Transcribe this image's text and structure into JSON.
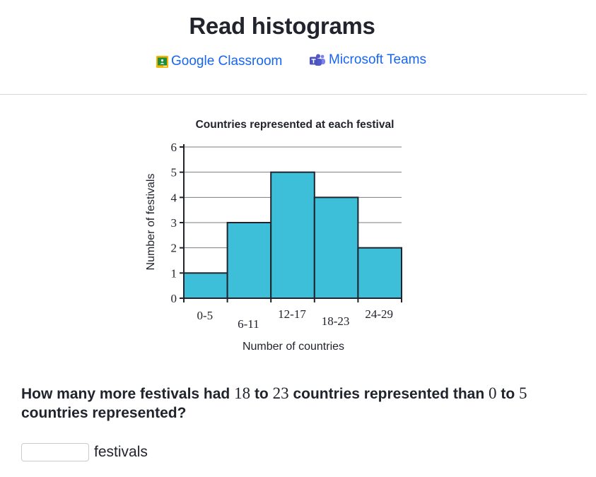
{
  "page": {
    "title": "Read histograms"
  },
  "share": {
    "google_classroom": "Google Classroom",
    "microsoft_teams": "Microsoft Teams"
  },
  "chart_data": {
    "type": "bar",
    "title": "Countries represented at each festival",
    "xlabel": "Number of countries",
    "ylabel": "Number of festivals",
    "categories": [
      "0-5",
      "6-11",
      "12-17",
      "18-23",
      "24-29"
    ],
    "values": [
      1,
      3,
      5,
      4,
      2
    ],
    "ylim": [
      0,
      6
    ],
    "yticks": [
      0,
      1,
      2,
      3,
      4,
      5,
      6
    ],
    "grid": true,
    "bar_color": "#3ebfd9",
    "bar_edge_color": "#21242c"
  },
  "question": {
    "part1": "How many more festivals had ",
    "n1": "18",
    "part2": " to ",
    "n2": "23",
    "part3": " countries represented than ",
    "n3": "0",
    "part4": " to ",
    "n4": "5",
    "part5": " countries represented?"
  },
  "answer": {
    "value": "",
    "unit": "festivals"
  }
}
